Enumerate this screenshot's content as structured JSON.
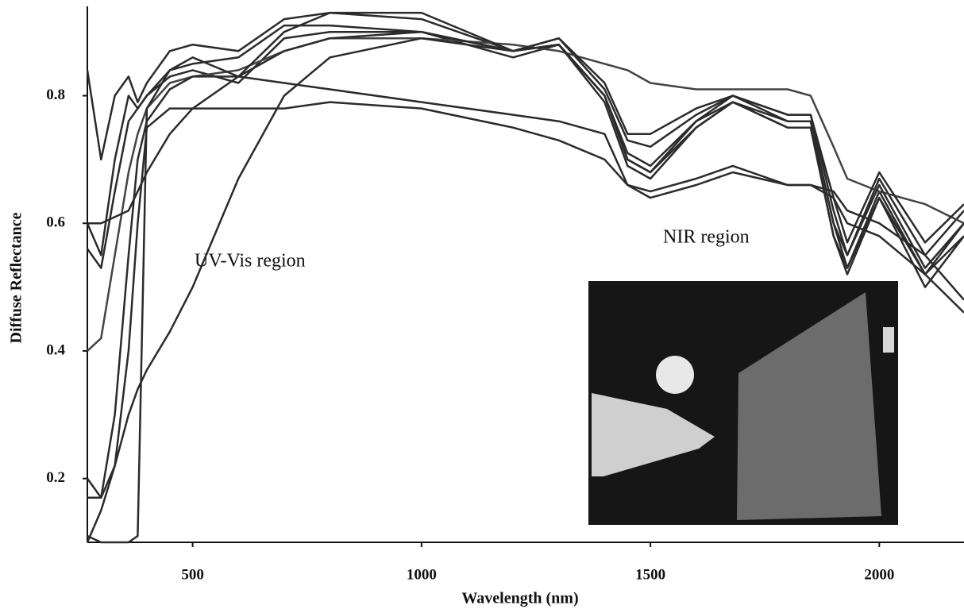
{
  "chart_data": {
    "type": "line",
    "xlabel": "Wavelength (nm)",
    "ylabel": "Diffuse Reflectance",
    "annotations": [
      "UV-Vis region",
      "NIR region"
    ],
    "x": [
      270,
      300,
      330,
      360,
      380,
      400,
      450,
      500,
      600,
      700,
      800,
      1000,
      1200,
      1300,
      1400,
      1450,
      1500,
      1600,
      1680,
      1800,
      1850,
      1900,
      1930,
      2000,
      2100,
      2185
    ],
    "series": [
      {
        "color": "#2b2b2b",
        "values": [
          0.84,
          0.7,
          0.8,
          0.83,
          0.79,
          0.82,
          0.87,
          0.88,
          0.87,
          0.92,
          0.93,
          0.92,
          0.87,
          0.89,
          0.81,
          0.73,
          0.72,
          0.77,
          0.8,
          0.77,
          0.77,
          0.62,
          0.55,
          0.67,
          0.55,
          0.62
        ]
      },
      {
        "color": "#2b2b2b",
        "values": [
          0.6,
          0.55,
          0.7,
          0.8,
          0.78,
          0.8,
          0.84,
          0.85,
          0.86,
          0.91,
          0.91,
          0.9,
          0.87,
          0.88,
          0.8,
          0.71,
          0.69,
          0.76,
          0.79,
          0.76,
          0.76,
          0.6,
          0.53,
          0.65,
          0.52,
          0.6
        ]
      },
      {
        "color": "#2b2b2b",
        "values": [
          0.56,
          0.53,
          0.65,
          0.76,
          0.78,
          0.8,
          0.83,
          0.84,
          0.82,
          0.89,
          0.9,
          0.9,
          0.86,
          0.88,
          0.79,
          0.69,
          0.67,
          0.75,
          0.79,
          0.75,
          0.75,
          0.58,
          0.52,
          0.64,
          0.5,
          0.58
        ]
      },
      {
        "color": "#444444",
        "values": [
          0.4,
          0.42,
          0.55,
          0.68,
          0.74,
          0.78,
          0.82,
          0.83,
          0.84,
          0.87,
          0.89,
          0.89,
          0.88,
          0.87,
          0.85,
          0.84,
          0.82,
          0.81,
          0.81,
          0.81,
          0.8,
          0.72,
          0.67,
          0.65,
          0.63,
          0.6
        ]
      },
      {
        "color": "#2b2b2b",
        "values": [
          0.2,
          0.17,
          0.3,
          0.55,
          0.7,
          0.76,
          0.81,
          0.83,
          0.83,
          0.82,
          0.81,
          0.79,
          0.77,
          0.76,
          0.74,
          0.66,
          0.64,
          0.66,
          0.68,
          0.66,
          0.66,
          0.65,
          0.62,
          0.6,
          0.55,
          0.48
        ]
      },
      {
        "color": "#2b2b2b",
        "values": [
          0.17,
          0.17,
          0.22,
          0.4,
          0.6,
          0.75,
          0.78,
          0.78,
          0.78,
          0.78,
          0.79,
          0.78,
          0.75,
          0.73,
          0.7,
          0.66,
          0.65,
          0.67,
          0.69,
          0.66,
          0.66,
          0.64,
          0.6,
          0.58,
          0.52,
          0.46
        ]
      },
      {
        "color": "#2b2b2b",
        "values": [
          0.11,
          0.1,
          0.1,
          0.1,
          0.11,
          0.78,
          0.84,
          0.86,
          0.83,
          0.9,
          0.93,
          0.93,
          0.87,
          0.89,
          0.82,
          0.74,
          0.74,
          0.78,
          0.8,
          0.77,
          0.77,
          0.64,
          0.57,
          0.68,
          0.57,
          0.63
        ]
      },
      {
        "color": "#2b2b2b",
        "values": [
          0.6,
          0.6,
          0.61,
          0.62,
          0.65,
          0.68,
          0.74,
          0.78,
          0.83,
          0.87,
          0.89,
          0.9,
          0.87,
          0.88,
          0.8,
          0.7,
          0.68,
          0.75,
          0.79,
          0.75,
          0.75,
          0.58,
          0.53,
          0.64,
          0.52,
          0.58
        ]
      },
      {
        "color": "#2b2b2b",
        "values": [
          0.1,
          0.15,
          0.22,
          0.3,
          0.34,
          0.37,
          0.43,
          0.5,
          0.67,
          0.8,
          0.86,
          0.89,
          0.87,
          0.88,
          0.8,
          0.7,
          0.68,
          0.76,
          0.8,
          0.76,
          0.76,
          0.6,
          0.55,
          0.66,
          0.53,
          0.6
        ]
      }
    ],
    "xlim": [
      270,
      2185
    ],
    "ylim": [
      0.1,
      0.95
    ],
    "xticks": [
      500,
      1000,
      1500,
      2000
    ],
    "yticks": [
      0.2,
      0.4,
      0.6,
      0.8
    ]
  }
}
